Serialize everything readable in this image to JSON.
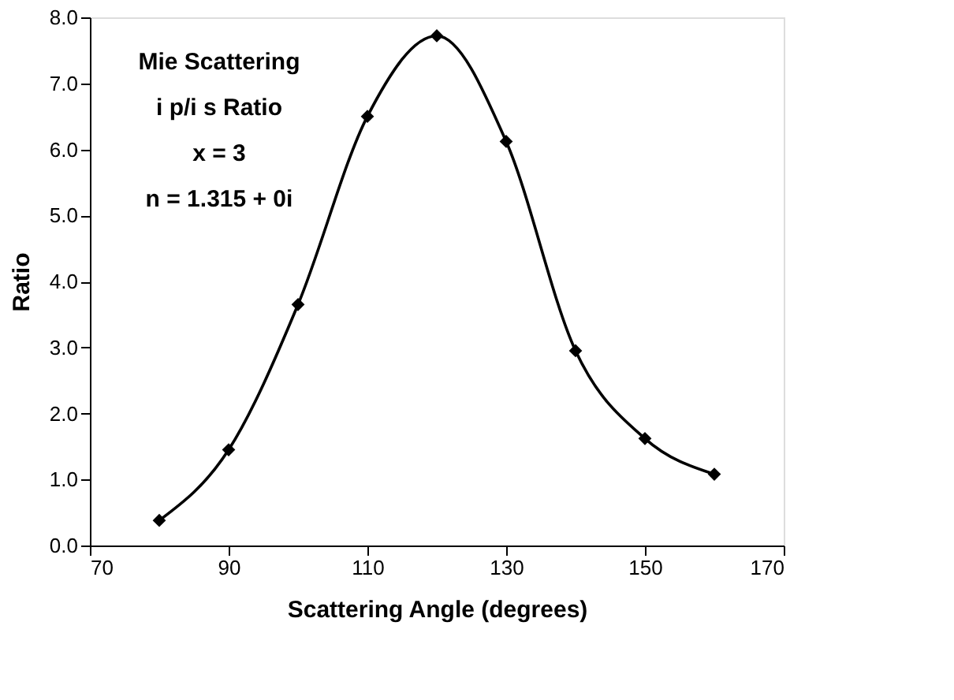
{
  "chart_data": {
    "type": "line",
    "xlabel": "Scattering Angle (degrees)",
    "ylabel": "Ratio",
    "annotations": [
      "Mie Scattering",
      "i p/i s Ratio",
      "x = 3",
      "n = 1.315 + 0i"
    ],
    "x": [
      80,
      90,
      100,
      110,
      120,
      130,
      140,
      150,
      160
    ],
    "series": [
      {
        "color": "#000000",
        "values": [
          0.38,
          1.45,
          3.65,
          6.5,
          7.72,
          6.12,
          2.95,
          1.62,
          1.08
        ]
      }
    ],
    "xlim": [
      70,
      170
    ],
    "xticks": [
      70,
      90,
      110,
      130,
      150,
      170
    ],
    "ylim": [
      0,
      8
    ],
    "yticks": [
      {
        "value": 0,
        "label": "0.0"
      },
      {
        "value": 1,
        "label": "1.0"
      },
      {
        "value": 2,
        "label": "2.0"
      },
      {
        "value": 3,
        "label": "3.0"
      },
      {
        "value": 4,
        "label": "4.0"
      },
      {
        "value": 5,
        "label": "5.0"
      },
      {
        "value": 6,
        "label": "6.0"
      },
      {
        "value": 7,
        "label": "7.0"
      },
      {
        "value": 8,
        "label": "8.0"
      }
    ],
    "grid": false,
    "marker": "diamond",
    "line_style": "solid"
  }
}
